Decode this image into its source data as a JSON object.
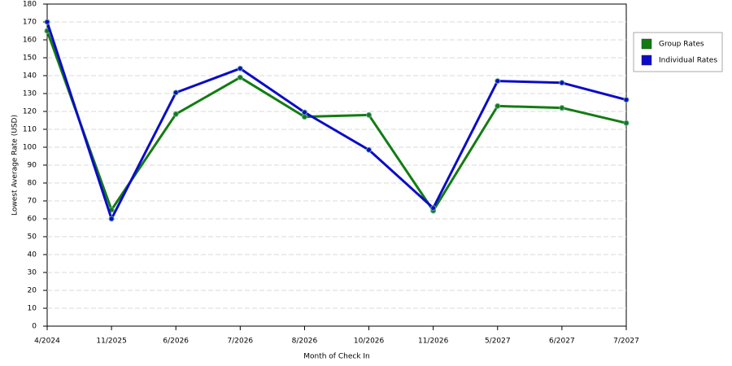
{
  "chart_data": {
    "type": "line",
    "x_label": "Month of Check In",
    "y_label": "Lowest Average Rate (USD)",
    "categories": [
      "4/2024",
      "11/2025",
      "6/2026",
      "7/2026",
      "8/2026",
      "10/2026",
      "11/2026",
      "5/2027",
      "6/2027",
      "7/2027"
    ],
    "series": [
      {
        "name": "Group Rates",
        "color": "#137b13",
        "values": [
          165,
          65,
          118.5,
          139,
          117,
          118,
          64.5,
          123,
          122,
          113.5
        ]
      },
      {
        "name": "Individual Rates",
        "color": "#0c0cc8",
        "values": [
          170,
          60,
          130.5,
          144,
          119.5,
          98.5,
          66,
          137,
          136,
          126.5
        ]
      }
    ],
    "ylim": [
      0,
      180
    ],
    "yticks": [
      0,
      10,
      20,
      30,
      40,
      50,
      60,
      70,
      80,
      90,
      100,
      110,
      120,
      130,
      140,
      150,
      160,
      170,
      180
    ],
    "grid": true,
    "legend": "right"
  }
}
